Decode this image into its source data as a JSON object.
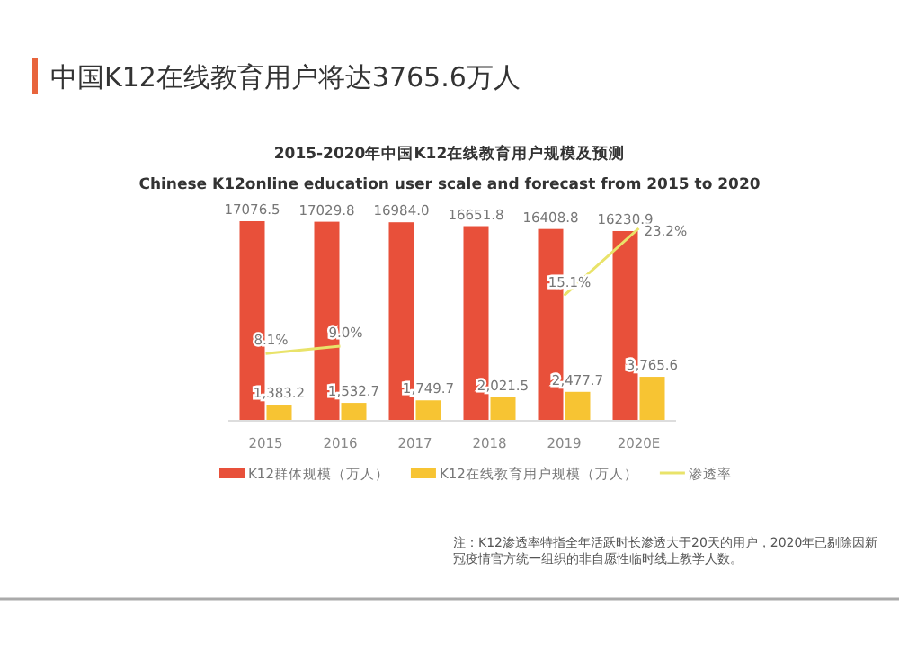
{
  "chart_data": {
    "type": "bar",
    "title": "中国K12在线教育用户将达3765.6万人",
    "subtitle": "2015-2020年中国K12在线教育用户规模及预测\nChinese K12online education user scale and forecast from 2015 to 2020",
    "categories": [
      "2015",
      "2016",
      "2017",
      "2018",
      "2019",
      "2020E"
    ],
    "series": [
      {
        "name": "K12群体规模（万人）",
        "color": "#e8503a",
        "values": [
          17076.5,
          17029.8,
          16984.0,
          16651.8,
          16408.8,
          16230.9
        ],
        "value_labels": [
          "17076.5",
          "17029.8",
          "16984.0",
          "16651.8",
          "16408.8",
          "16230.9"
        ]
      },
      {
        "name": "K12在线教育用户规模（万人）",
        "color": "#f7c433",
        "values": [
          1383.2,
          1532.7,
          1749.7,
          2021.5,
          2477.7,
          3765.6
        ],
        "value_labels": [
          "1,383.2",
          "1,532.7",
          "1,749.7",
          "2,021.5",
          "2,477.7",
          "3,765.6"
        ]
      },
      {
        "name": "渗透率",
        "type": "line",
        "axis": "y2",
        "color": "#e9e36a",
        "values": [
          8.1,
          9.0,
          null,
          null,
          15.1,
          23.2
        ],
        "value_labels": [
          "8.1%",
          "9.0%",
          null,
          null,
          "15.1%",
          "23.2%"
        ]
      }
    ],
    "legend": "bottom",
    "annotations": [
      "注：K12渗透率特指全年活跃时长渗透大于20天的用户，2020年已剔除因新冠疫情官方统一组织的非自愿性临时线上教学人数。"
    ]
  }
}
